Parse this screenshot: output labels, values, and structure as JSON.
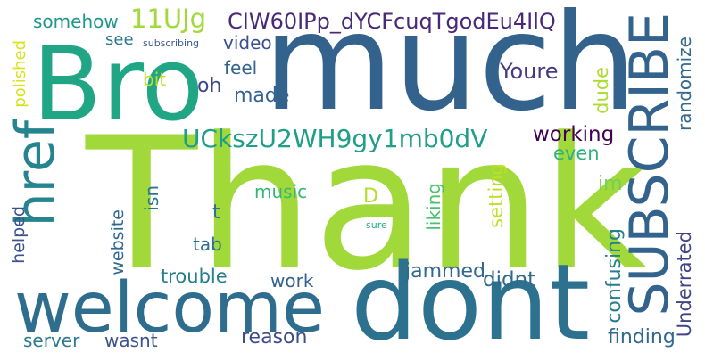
{
  "words": [
    {
      "text": "Thank",
      "color": "#a2d93a"
    },
    {
      "text": "much",
      "color": "#33638d"
    },
    {
      "text": "Bro",
      "color": "#21a685"
    },
    {
      "text": "dont",
      "color": "#2c728e"
    },
    {
      "text": "welcome",
      "color": "#2e6d8e"
    },
    {
      "text": "SUBSCRIBE",
      "color": "#33638d"
    },
    {
      "text": "href",
      "color": "#25848e"
    },
    {
      "text": "11UJg",
      "color": "#a2d93a"
    },
    {
      "text": "CIW60IPp_dYCFcuqTgodEu4IlQ",
      "color": "#482878"
    },
    {
      "text": "UCkszU2WH9gy1mb0dV",
      "color": "#1f9e89"
    },
    {
      "text": "somehow",
      "color": "#1f968b"
    },
    {
      "text": "polished",
      "color": "#d8e219"
    },
    {
      "text": "see",
      "color": "#2a788e"
    },
    {
      "text": "subscribing",
      "color": "#38588c"
    },
    {
      "text": "video",
      "color": "#3c4f8a"
    },
    {
      "text": "feel",
      "color": "#32648e"
    },
    {
      "text": "bit",
      "color": "#c2df23"
    },
    {
      "text": "oh",
      "color": "#3e4989"
    },
    {
      "text": "made",
      "color": "#34618d"
    },
    {
      "text": "Youre",
      "color": "#443983"
    },
    {
      "text": "randomize",
      "color": "#31688e"
    },
    {
      "text": "dude",
      "color": "#addc30"
    },
    {
      "text": "working",
      "color": "#440154"
    },
    {
      "text": "even",
      "color": "#2db27d"
    },
    {
      "text": "im",
      "color": "#73d056"
    },
    {
      "text": "helped",
      "color": "#3b528b"
    },
    {
      "text": "website",
      "color": "#31688e"
    },
    {
      "text": "isn",
      "color": "#2a788e"
    },
    {
      "text": "music",
      "color": "#35b779"
    },
    {
      "text": "D",
      "color": "#b5de2b"
    },
    {
      "text": "t",
      "color": "#2c728e"
    },
    {
      "text": "tab",
      "color": "#2e6e8e"
    },
    {
      "text": "liking",
      "color": "#4ac16d"
    },
    {
      "text": "setting",
      "color": "#bddf26"
    },
    {
      "text": "sure",
      "color": "#25ab82"
    },
    {
      "text": "trouble",
      "color": "#287d8e"
    },
    {
      "text": "work",
      "color": "#34618d"
    },
    {
      "text": "jammed",
      "color": "#31688e"
    },
    {
      "text": "didnt",
      "color": "#31688e"
    },
    {
      "text": "confusing",
      "color": "#277f8e"
    },
    {
      "text": "Underrated",
      "color": "#414487"
    },
    {
      "text": "server",
      "color": "#2a788e"
    },
    {
      "text": "wasnt",
      "color": "#3b528b"
    },
    {
      "text": "reason",
      "color": "#3e4c8a"
    },
    {
      "text": "finding",
      "color": "#31688e"
    }
  ]
}
